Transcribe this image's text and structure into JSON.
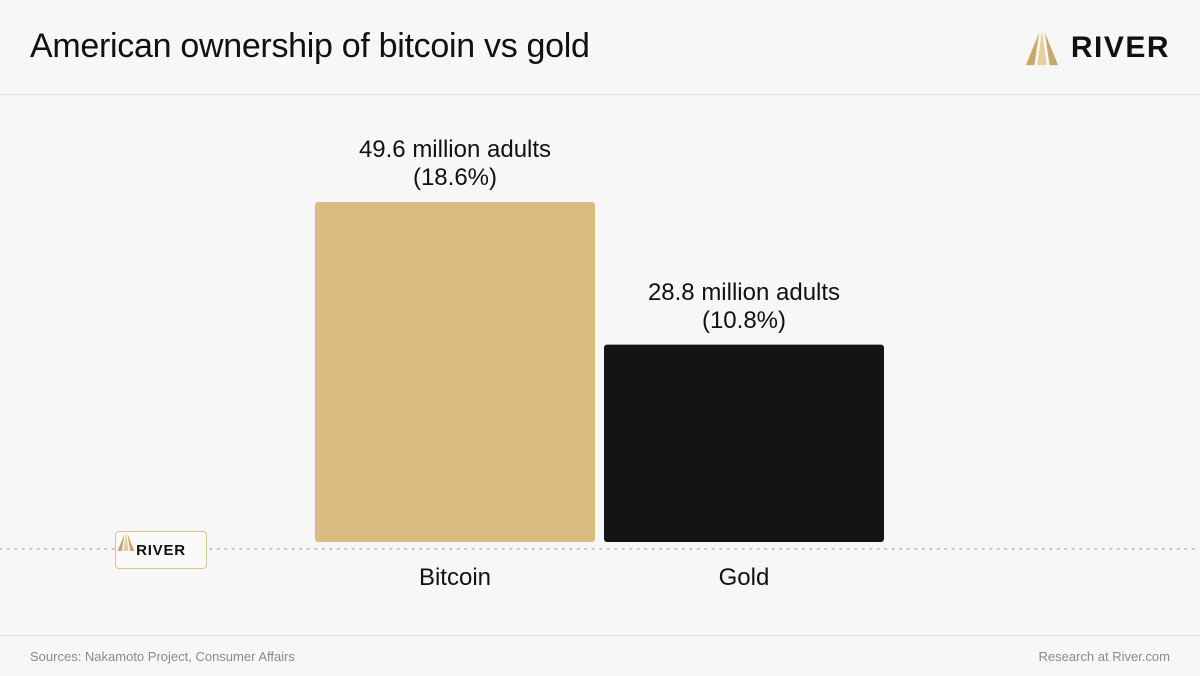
{
  "header": {
    "title": "American ownership of bitcoin vs gold",
    "logo_text": "RIVER"
  },
  "chart_data": {
    "type": "bar",
    "categories": [
      "Bitcoin",
      "Gold"
    ],
    "values": [
      49.6,
      28.8
    ],
    "percentages": [
      18.6,
      10.8
    ],
    "data_labels": [
      [
        "49.6 million adults",
        "(18.6%)"
      ],
      [
        "28.8 million adults",
        "(10.8%)"
      ]
    ],
    "colors": [
      "#d8bc82",
      "#141414"
    ],
    "ylim": [
      0,
      49.6
    ],
    "grid": false,
    "title": "American ownership of bitcoin vs gold",
    "xlabel": "",
    "ylabel": ""
  },
  "badge": {
    "logo_text": "RIVER"
  },
  "footer": {
    "source": "Sources: Nakamoto Project, Consumer Affairs",
    "credit": "Research at River.com"
  },
  "icons": {
    "brand": "river-logo-icon"
  },
  "colors": {
    "gold_accent": "#c9a96a",
    "baseline_dots": "#c8c8c8"
  }
}
